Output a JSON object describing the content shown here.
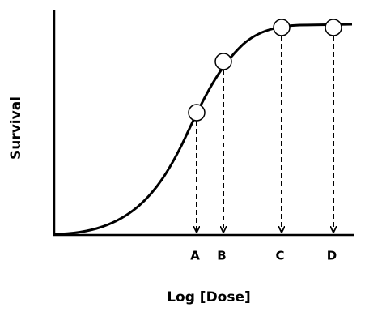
{
  "axes": {
    "y_label": "Survival",
    "x_label": "Log [Dose]"
  },
  "points": [
    {
      "label": "A"
    },
    {
      "label": "B"
    },
    {
      "label": "C"
    },
    {
      "label": "D"
    }
  ]
}
